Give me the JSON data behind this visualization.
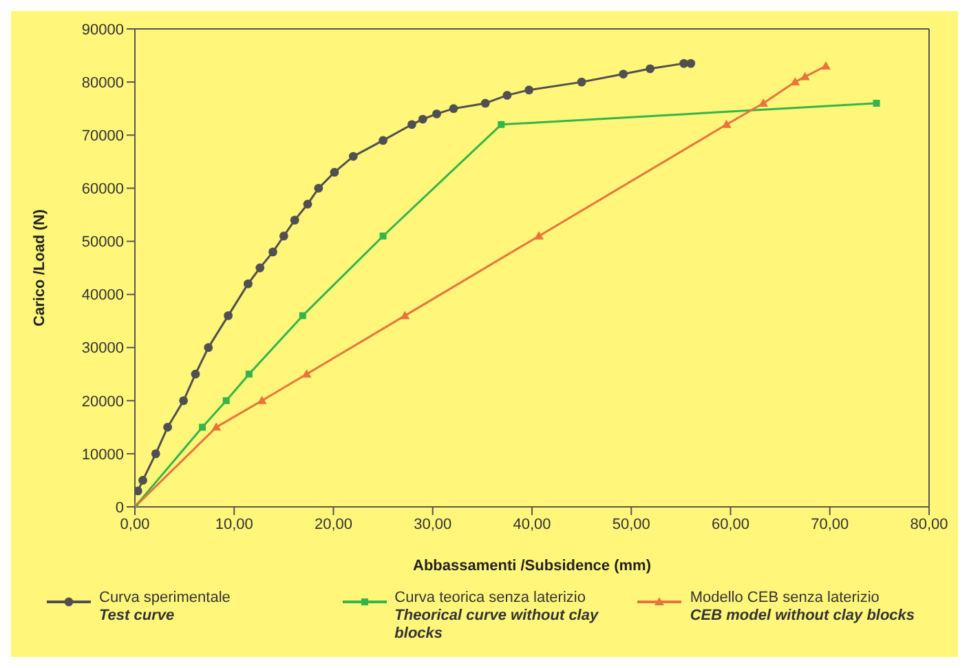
{
  "chart_data": {
    "type": "line",
    "xlabel": "Abbassamenti /Subsidence  (mm)",
    "ylabel": "Carico /Load  (N)",
    "xlim": [
      0,
      80
    ],
    "xticks": [
      {
        "value": 0,
        "label": "0,00"
      },
      {
        "value": 10,
        "label": "10,00"
      },
      {
        "value": 20,
        "label": "20,00"
      },
      {
        "value": 30,
        "label": "30,00"
      },
      {
        "value": 40,
        "label": "40,00"
      },
      {
        "value": 50,
        "label": "50,00"
      },
      {
        "value": 60,
        "label": "60,00"
      },
      {
        "value": 70,
        "label": "70,00"
      },
      {
        "value": 80,
        "label": "80,00"
      }
    ],
    "ylim": [
      0,
      90000
    ],
    "yticks": [
      0,
      10000,
      20000,
      30000,
      40000,
      50000,
      60000,
      70000,
      80000,
      90000
    ],
    "grid": false,
    "legend": "bottom",
    "line_style": "solid",
    "series": [
      {
        "name": "Curva sperimentale\nTest curve",
        "color": "#505050",
        "marker": "circle",
        "x": [
          0.3,
          0.8,
          2.1,
          3.3,
          4.9,
          6.1,
          7.4,
          9.4,
          11.4,
          12.6,
          13.9,
          15.0,
          16.1,
          17.4,
          18.5,
          20.1,
          22.0,
          25.0,
          27.9,
          29.0,
          30.4,
          32.1,
          35.3,
          37.5,
          39.7,
          45.0,
          49.2,
          51.9,
          55.3,
          56.0
        ],
        "values": [
          3000,
          5000,
          10000,
          15000,
          20000,
          25000,
          30000,
          36000,
          42000,
          45000,
          48000,
          51000,
          54000,
          57000,
          60000,
          63000,
          66000,
          69000,
          72000,
          73000,
          74000,
          75000,
          76000,
          77500,
          78500,
          80000,
          81500,
          82500,
          83500,
          83500
        ]
      },
      {
        "name": "Curva teorica senza laterizio\nTheorical curve without clay blocks",
        "color": "#33b54a",
        "marker": "square",
        "x": [
          0,
          6.8,
          9.2,
          11.5,
          16.9,
          25.0,
          36.9,
          74.7
        ],
        "values": [
          0,
          15000,
          20000,
          25000,
          36000,
          51000,
          72000,
          76000
        ]
      },
      {
        "name": "Modello CEB senza laterizio\nCEB model without clay blocks",
        "color": "#e8743b",
        "marker": "triangle",
        "x": [
          0,
          8.2,
          12.8,
          17.3,
          27.2,
          40.7,
          59.6,
          63.3,
          66.5,
          67.5,
          69.6
        ],
        "values": [
          0,
          15000,
          20000,
          25000,
          36000,
          51000,
          72000,
          76000,
          80000,
          81000,
          83000
        ]
      }
    ]
  }
}
